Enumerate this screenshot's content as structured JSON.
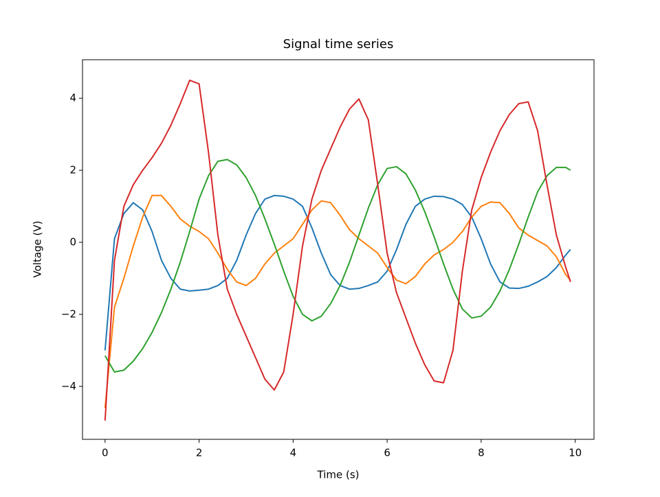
{
  "chart_data": {
    "type": "line",
    "title": "Signal time series",
    "x_label": "Time (s)",
    "y_label": "Voltage (V)",
    "x": [
      0,
      0.2,
      0.4,
      0.6,
      0.8,
      1.0,
      1.2,
      1.4,
      1.6,
      1.8,
      2.0,
      2.2,
      2.4,
      2.6,
      2.8,
      3.0,
      3.2,
      3.4,
      3.6,
      3.8,
      4.0,
      4.2,
      4.4,
      4.6,
      4.8,
      5.0,
      5.2,
      5.4,
      5.6,
      5.8,
      6.0,
      6.2,
      6.4,
      6.6,
      6.8,
      7.0,
      7.2,
      7.4,
      7.6,
      7.8,
      8.0,
      8.2,
      8.4,
      8.6,
      8.8,
      9.0,
      9.2,
      9.4,
      9.6,
      9.8,
      9.9
    ],
    "series": [
      {
        "color": "#1f77b4",
        "values": [
          -3.0,
          0.1,
          0.8,
          1.1,
          0.9,
          0.3,
          -0.5,
          -1.0,
          -1.3,
          -1.35,
          -1.33,
          -1.3,
          -1.2,
          -1.0,
          -0.5,
          0.2,
          0.8,
          1.2,
          1.3,
          1.28,
          1.2,
          1.0,
          0.4,
          -0.3,
          -0.9,
          -1.2,
          -1.3,
          -1.28,
          -1.2,
          -1.1,
          -0.8,
          -0.2,
          0.5,
          1.0,
          1.2,
          1.28,
          1.27,
          1.2,
          1.05,
          0.7,
          0.1,
          -0.6,
          -1.1,
          -1.27,
          -1.28,
          -1.22,
          -1.1,
          -0.95,
          -0.7,
          -0.35,
          -0.2
        ]
      },
      {
        "color": "#ff7f0e",
        "values": [
          -4.6,
          -1.8,
          -1.0,
          -0.1,
          0.7,
          1.3,
          1.3,
          1.0,
          0.65,
          0.45,
          0.3,
          0.1,
          -0.3,
          -0.75,
          -1.1,
          -1.2,
          -1.0,
          -0.6,
          -0.3,
          -0.1,
          0.1,
          0.5,
          0.9,
          1.15,
          1.1,
          0.75,
          0.35,
          0.1,
          -0.1,
          -0.3,
          -0.7,
          -1.05,
          -1.15,
          -0.95,
          -0.6,
          -0.35,
          -0.2,
          0.0,
          0.3,
          0.7,
          1.0,
          1.12,
          1.1,
          0.8,
          0.4,
          0.2,
          0.05,
          -0.1,
          -0.4,
          -0.9,
          -1.05
        ]
      },
      {
        "color": "#2ca02c",
        "values": [
          -3.15,
          -3.6,
          -3.55,
          -3.3,
          -2.95,
          -2.5,
          -1.95,
          -1.3,
          -0.55,
          0.3,
          1.2,
          1.85,
          2.25,
          2.3,
          2.15,
          1.8,
          1.3,
          0.65,
          -0.05,
          -0.8,
          -1.5,
          -2.0,
          -2.18,
          -2.05,
          -1.7,
          -1.2,
          -0.55,
          0.2,
          0.95,
          1.6,
          2.05,
          2.1,
          1.9,
          1.45,
          0.85,
          0.15,
          -0.6,
          -1.3,
          -1.85,
          -2.1,
          -2.05,
          -1.8,
          -1.35,
          -0.75,
          -0.05,
          0.7,
          1.4,
          1.85,
          2.08,
          2.08,
          2.0
        ]
      },
      {
        "color": "#d62728",
        "values": [
          -4.95,
          -0.5,
          1.0,
          1.6,
          2.0,
          2.35,
          2.75,
          3.25,
          3.85,
          4.5,
          4.4,
          2.5,
          0.2,
          -1.3,
          -2.0,
          -2.6,
          -3.2,
          -3.8,
          -4.1,
          -3.6,
          -2.0,
          -0.1,
          1.2,
          2.0,
          2.6,
          3.2,
          3.7,
          3.98,
          3.4,
          1.6,
          -0.3,
          -1.4,
          -2.1,
          -2.8,
          -3.4,
          -3.85,
          -3.9,
          -3.0,
          -0.8,
          0.9,
          1.8,
          2.5,
          3.1,
          3.55,
          3.85,
          3.9,
          3.1,
          1.6,
          0.2,
          -0.7,
          -1.1
        ]
      }
    ],
    "xlim": [
      -0.48,
      10.4
    ],
    "ylim": [
      -5.47,
      5.07
    ],
    "xticks": [
      0,
      2,
      4,
      6,
      8,
      10
    ],
    "yticks": [
      {
        "value": -4,
        "label": "−4"
      },
      {
        "value": -2,
        "label": "−2"
      },
      0,
      2,
      4
    ]
  }
}
